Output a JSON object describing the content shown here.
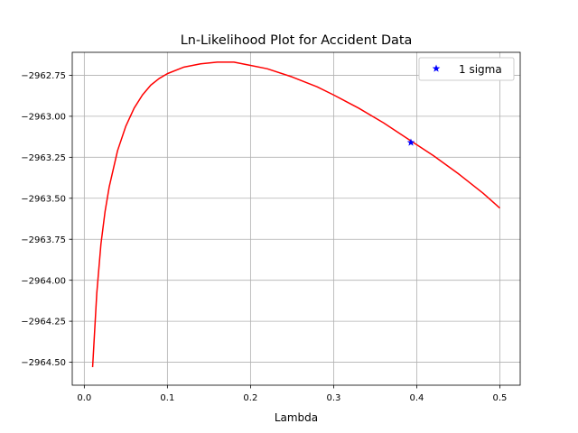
{
  "chart_data": {
    "type": "line",
    "title": "Ln-Likelihood Plot for Accident Data",
    "xlabel": "Lambda",
    "ylabel": "",
    "xlim": [
      -0.0145,
      0.5245
    ],
    "ylim": [
      -2964.64,
      -2962.61
    ],
    "xticks": [
      0.0,
      0.1,
      0.2,
      0.3,
      0.4,
      0.5
    ],
    "xtick_labels": [
      "0.0",
      "0.1",
      "0.2",
      "0.3",
      "0.4",
      "0.5"
    ],
    "yticks": [
      -2964.5,
      -2964.25,
      -2964.0,
      -2963.75,
      -2963.5,
      -2963.25,
      -2963.0,
      -2962.75
    ],
    "ytick_labels": [
      "−2964.50",
      "−2964.25",
      "−2964.00",
      "−2963.75",
      "−2963.50",
      "−2963.25",
      "−2963.00",
      "−2962.75"
    ],
    "grid": true,
    "legend_position": "top-right",
    "series": [
      {
        "name": "",
        "color": "#ff0000",
        "style": "line",
        "x": [
          0.01,
          0.015,
          0.02,
          0.025,
          0.03,
          0.04,
          0.05,
          0.06,
          0.07,
          0.08,
          0.09,
          0.1,
          0.12,
          0.14,
          0.16,
          0.18,
          0.2,
          0.22,
          0.25,
          0.28,
          0.3,
          0.33,
          0.36,
          0.39,
          0.42,
          0.45,
          0.48,
          0.5
        ],
        "y": [
          -2964.53,
          -2964.08,
          -2963.78,
          -2963.58,
          -2963.43,
          -2963.21,
          -2963.06,
          -2962.95,
          -2962.87,
          -2962.81,
          -2962.77,
          -2962.74,
          -2962.7,
          -2962.68,
          -2962.67,
          -2962.67,
          -2962.69,
          -2962.71,
          -2962.76,
          -2962.82,
          -2962.87,
          -2962.95,
          -2963.04,
          -2963.14,
          -2963.24,
          -2963.35,
          -2963.47,
          -2963.56
        ]
      },
      {
        "name": "1 sigma",
        "color": "#0000ff",
        "style": "marker",
        "marker": "star",
        "x": [
          0.393
        ],
        "y": [
          -2963.16
        ]
      }
    ]
  }
}
